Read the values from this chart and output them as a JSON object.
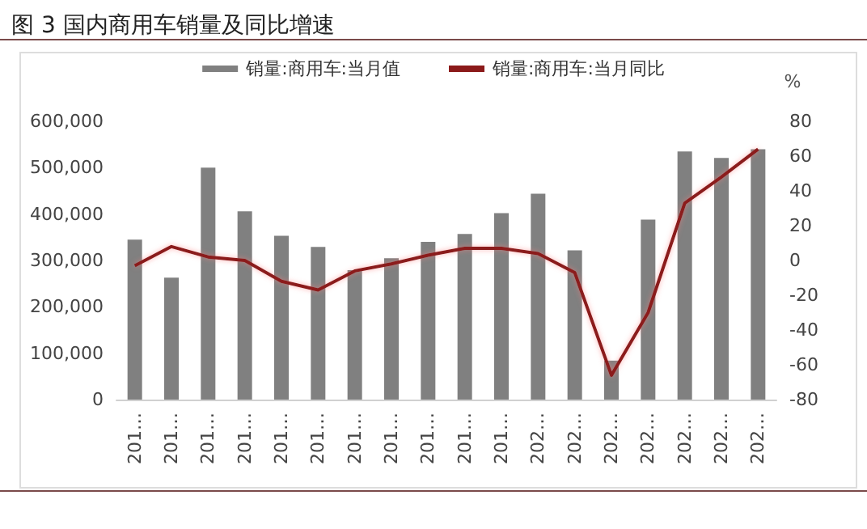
{
  "chart_data": {
    "type": "bar",
    "title": "图 3 国内商用车销量及同比增速",
    "categories": [
      "201…",
      "201…",
      "201…",
      "201…",
      "201…",
      "201…",
      "201…",
      "201…",
      "201…",
      "201…",
      "201…",
      "202…",
      "202…",
      "202…",
      "202…",
      "202…",
      "202…",
      "202…"
    ],
    "series": [
      {
        "name": "销量:商用车:当月值",
        "color": "#808080",
        "values": [
          345000,
          263000,
          500000,
          406000,
          353000,
          329000,
          279000,
          305000,
          340000,
          357000,
          402000,
          444000,
          322000,
          84000,
          388000,
          535000,
          521000,
          540000
        ]
      },
      {
        "name": "销量:商用车:当月同比",
        "type": "line",
        "axis": "y2",
        "color": "#8b1a1a",
        "values": [
          -3,
          8,
          2,
          0,
          -12,
          -17,
          -6,
          -2,
          3,
          7,
          7,
          4,
          -7,
          -66,
          -30,
          33,
          48,
          64
        ]
      }
    ],
    "ylim": [
      0,
      600000
    ],
    "yticks": [
      0,
      {
        "value": 100000,
        "label": "100,000"
      },
      {
        "value": 200000,
        "label": "200,000"
      },
      {
        "value": 300000,
        "label": "300,000"
      },
      {
        "value": 400000,
        "label": "400,000"
      },
      {
        "value": 500000,
        "label": "500,000"
      },
      {
        "value": 600000,
        "label": "600,000"
      }
    ],
    "y2label": "%",
    "y2lim": [
      -80,
      80
    ],
    "y2ticks": [
      -80,
      -60,
      -40,
      -20,
      0,
      20,
      40,
      60,
      80
    ],
    "grid": false,
    "legend": "top",
    "marker": "none"
  }
}
